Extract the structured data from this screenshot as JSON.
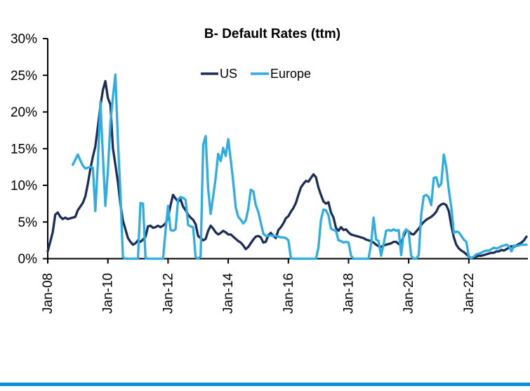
{
  "page": {
    "background": "#ffffff"
  },
  "footer": {
    "divider_color": "#0a90d2"
  },
  "chart_data": {
    "type": "line",
    "title": "B- Default Rates (ttm)",
    "xlabel": "",
    "ylabel": "",
    "ylim": [
      0,
      30
    ],
    "grid": false,
    "legend_position": "top-center",
    "x_unit": "month",
    "x_start": "Jan-08",
    "x_tick_interval_months": 24,
    "x_tick_labels": [
      "Jan-08",
      "Jan-10",
      "Jan-12",
      "Jan-14",
      "Jan-16",
      "Jan-18",
      "Jan-20",
      "Jan-22"
    ],
    "y_tick_labels": [
      "0%",
      "5%",
      "10%",
      "15%",
      "20%",
      "25%",
      "30%"
    ],
    "legend": [
      {
        "name": "US",
        "color": "#1b2e57"
      },
      {
        "name": "Europe",
        "color": "#2face1"
      }
    ],
    "series": [
      {
        "name": "US",
        "color": "#1b2e57",
        "values": [
          1.0,
          2.3,
          3.6,
          6.0,
          6.3,
          5.7,
          5.4,
          5.6,
          5.4,
          5.5,
          5.6,
          5.7,
          6.6,
          7.1,
          7.6,
          8.5,
          10.2,
          12.2,
          13.9,
          15.3,
          18.0,
          20.8,
          23.0,
          24.2,
          21.9,
          21.0,
          15.1,
          12.8,
          10.4,
          7.5,
          5.2,
          4.0,
          2.8,
          2.3,
          1.9,
          2.1,
          2.5,
          2.3,
          2.6,
          3.0,
          4.4,
          4.5,
          4.2,
          4.3,
          4.5,
          4.3,
          4.5,
          4.8,
          5.6,
          7.3,
          8.7,
          8.2,
          7.8,
          8.1,
          7.1,
          6.6,
          6.0,
          5.6,
          5.3,
          4.7,
          3.1,
          2.8,
          2.5,
          2.7,
          3.8,
          4.5,
          4.1,
          3.6,
          3.3,
          3.5,
          3.8,
          3.6,
          3.3,
          3.3,
          3.0,
          2.7,
          2.4,
          2.2,
          1.8,
          1.3,
          1.6,
          2.1,
          2.6,
          3.0,
          3.1,
          2.9,
          2.2,
          2.3,
          3.2,
          3.5,
          3.1,
          2.8,
          3.9,
          4.3,
          4.8,
          5.5,
          5.8,
          6.4,
          6.9,
          7.6,
          8.7,
          9.7,
          10.2,
          10.6,
          10.5,
          11.0,
          11.5,
          11.1,
          9.7,
          8.7,
          7.8,
          7.5,
          7.7,
          6.3,
          5.6,
          4.2,
          3.8,
          4.3,
          3.9,
          4.0,
          3.6,
          3.3,
          3.2,
          3.1,
          3.0,
          2.9,
          2.8,
          2.6,
          2.5,
          2.4,
          2.2,
          1.9,
          1.7,
          1.6,
          1.8,
          1.9,
          2.0,
          2.1,
          2.3,
          2.3,
          2.0,
          2.2,
          3.0,
          3.9,
          3.7,
          3.4,
          3.3,
          3.7,
          4.1,
          4.6,
          5.0,
          5.3,
          5.5,
          5.7,
          6.0,
          6.4,
          7.1,
          7.4,
          7.5,
          7.3,
          6.5,
          4.5,
          2.9,
          1.9,
          1.4,
          1.1,
          0.9,
          0.6,
          0.3,
          0.1,
          0.2,
          0.3,
          0.4,
          0.4,
          0.5,
          0.6,
          0.7,
          0.8,
          0.8,
          1.0,
          1.0,
          1.2,
          1.1,
          1.3,
          1.5,
          1.7,
          1.6,
          1.8,
          2.0,
          2.2,
          2.5,
          3.0
        ]
      },
      {
        "name": "Europe",
        "color": "#2face1",
        "values": [
          null,
          null,
          null,
          null,
          null,
          null,
          null,
          null,
          null,
          null,
          12.8,
          13.5,
          14.2,
          13.4,
          12.7,
          12.3,
          12.4,
          12.5,
          12.4,
          6.5,
          13.0,
          21.4,
          14.0,
          7.2,
          12.0,
          18.5,
          22.0,
          25.1,
          16.0,
          9.0,
          0.2,
          0,
          0,
          0,
          0,
          0,
          0,
          7.6,
          7.5,
          0.1,
          0,
          0,
          0,
          0,
          0,
          0,
          0,
          3.8,
          7.2,
          3.9,
          3.8,
          4.0,
          8.1,
          8.4,
          8.3,
          8.0,
          4.6,
          4.4,
          4.3,
          0.2,
          0,
          0.3,
          15.5,
          16.7,
          9.5,
          6.1,
          8.5,
          11.0,
          14.3,
          13.3,
          15.1,
          14.0,
          16.3,
          13.5,
          10.5,
          7.0,
          5.7,
          5.3,
          4.8,
          5.2,
          6.8,
          9.4,
          9.2,
          7.3,
          6.4,
          4.9,
          3.4,
          3.1,
          3.1,
          3.2,
          3.1,
          3.1,
          3.0,
          2.9,
          2.9,
          2.8,
          2.5,
          0.1,
          0,
          0,
          0,
          0,
          0,
          0,
          0,
          0,
          0,
          0,
          1.5,
          5.3,
          6.7,
          6.6,
          5.9,
          4.1,
          3.9,
          3.8,
          2.5,
          2.4,
          2.2,
          2.3,
          2.2,
          0.4,
          0,
          0,
          0,
          0,
          0,
          0,
          0,
          2.0,
          5.6,
          2.6,
          2.4,
          0.4,
          2.0,
          3.8,
          3.9,
          3.8,
          4.0,
          3.8,
          3.9,
          0.5,
          3.5,
          4.0,
          3.6,
          0.4,
          0,
          0,
          0.5,
          6.0,
          8.5,
          8.7,
          8.4,
          7.3,
          11.0,
          11.1,
          9.8,
          10.2,
          14.2,
          12.5,
          9.4,
          7.0,
          3.5,
          3.7,
          3.6,
          3.1,
          2.6,
          2.3,
          0.2,
          0.1,
          0.3,
          0.6,
          0.7,
          0.8,
          1.0,
          1.1,
          1.1,
          1.3,
          1.5,
          1.4,
          1.5,
          1.7,
          1.8,
          1.9,
          1.7,
          1.0,
          1.8,
          1.7,
          1.8,
          1.9,
          1.9,
          1.9
        ]
      }
    ]
  }
}
